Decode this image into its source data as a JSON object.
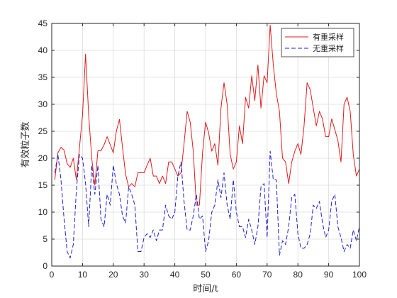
{
  "chart_data": {
    "type": "line",
    "xlabel": "时间/t",
    "ylabel": "有效粒子数",
    "xlim": [
      0,
      100
    ],
    "ylim": [
      0,
      45
    ],
    "xticks": [
      0,
      10,
      20,
      30,
      40,
      50,
      60,
      70,
      80,
      90,
      100
    ],
    "yticks": [
      0,
      5,
      10,
      15,
      20,
      25,
      30,
      35,
      40,
      45
    ],
    "grid": true,
    "legend_position": "top-right",
    "series": [
      {
        "name": "有重采样",
        "color": "#e41a1c",
        "style": "solid",
        "x": [
          1,
          2,
          3,
          4,
          5,
          6,
          7,
          8,
          9,
          10,
          11,
          12,
          13,
          14,
          15,
          16,
          17,
          18,
          19,
          20,
          21,
          22,
          23,
          24,
          25,
          26,
          27,
          28,
          29,
          30,
          31,
          32,
          33,
          34,
          35,
          36,
          37,
          38,
          39,
          40,
          41,
          42,
          43,
          44,
          45,
          46,
          47,
          48,
          49,
          50,
          51,
          52,
          53,
          54,
          55,
          56,
          57,
          58,
          59,
          60,
          61,
          62,
          63,
          64,
          65,
          66,
          67,
          68,
          69,
          70,
          71,
          72,
          73,
          74,
          75,
          76,
          77,
          78,
          79,
          80,
          81,
          82,
          83,
          84,
          85,
          86,
          87,
          88,
          89,
          90,
          91,
          92,
          93,
          94,
          95,
          96,
          97,
          98,
          99,
          100
        ],
        "y": [
          16,
          21,
          22,
          21.5,
          19,
          18.3,
          20,
          16,
          22,
          28,
          39.3,
          28,
          20,
          15,
          21.4,
          21.4,
          22.5,
          24,
          22.5,
          21,
          25,
          27.2,
          22,
          17,
          14.7,
          15.3,
          14.7,
          17.3,
          17.3,
          17.3,
          18.7,
          20,
          16.7,
          16.7,
          15.3,
          16.7,
          15.3,
          19.3,
          19.3,
          18,
          16.7,
          17.3,
          22.7,
          28.7,
          26.7,
          21.3,
          11.3,
          11.3,
          21,
          26.7,
          24.7,
          21.3,
          22.7,
          18.7,
          29.3,
          34,
          30,
          20.7,
          18,
          19.3,
          26,
          22.7,
          31.3,
          29.3,
          35.3,
          30.7,
          37.3,
          29.3,
          35.3,
          34,
          44.7,
          37.3,
          32,
          28.7,
          20,
          19.3,
          15.3,
          19.3,
          21.3,
          22.7,
          20.7,
          26,
          34,
          32.7,
          29.3,
          26,
          28.7,
          27.3,
          24,
          24,
          27.3,
          25.3,
          23.3,
          19.3,
          30,
          31.3,
          28.7,
          20.7,
          16.7,
          18
        ]
      },
      {
        "name": "无重采样",
        "color": "#1f1fd6",
        "style": "dashed",
        "x": [
          1,
          2,
          3,
          4,
          5,
          6,
          7,
          8,
          9,
          10,
          11,
          12,
          13,
          14,
          15,
          16,
          17,
          18,
          19,
          20,
          21,
          22,
          23,
          24,
          25,
          26,
          27,
          28,
          29,
          30,
          31,
          32,
          33,
          34,
          35,
          36,
          37,
          38,
          39,
          40,
          41,
          42,
          43,
          44,
          45,
          46,
          47,
          48,
          49,
          50,
          51,
          52,
          53,
          54,
          55,
          56,
          57,
          58,
          59,
          60,
          61,
          62,
          63,
          64,
          65,
          66,
          67,
          68,
          69,
          70,
          71,
          72,
          73,
          74,
          75,
          76,
          77,
          78,
          79,
          80,
          81,
          82,
          83,
          84,
          85,
          86,
          87,
          88,
          89,
          90,
          91,
          92,
          93,
          94,
          95,
          96,
          97,
          98,
          99,
          100
        ],
        "y": [
          17.3,
          20.7,
          16,
          8.7,
          2.7,
          1.5,
          4,
          14,
          20.7,
          20,
          15.3,
          7.3,
          18.7,
          13.3,
          18.7,
          8.7,
          7.3,
          13.3,
          11.3,
          18.7,
          15.3,
          13.3,
          9.3,
          8,
          14.7,
          13.3,
          11.3,
          2.7,
          2.7,
          5.3,
          6,
          5.3,
          6.7,
          4.7,
          6.7,
          6.7,
          11.3,
          9.3,
          8.7,
          10,
          16.7,
          19.3,
          12,
          6.7,
          6.7,
          9.3,
          13.3,
          8.7,
          9.3,
          2.7,
          4.7,
          10,
          11.3,
          16,
          12.7,
          17.3,
          11.3,
          8.7,
          16,
          10,
          7.3,
          7.3,
          5.3,
          8.7,
          6.7,
          4,
          7.3,
          14.7,
          15.3,
          5.3,
          21.3,
          16,
          16,
          2,
          4.7,
          4,
          7.3,
          12.7,
          13.3,
          6,
          3.3,
          3.3,
          4,
          6,
          11.3,
          10.7,
          12,
          8,
          5.3,
          6.7,
          12,
          13.3,
          7.3,
          5.3,
          2.7,
          4,
          3.3,
          6.7,
          4.7,
          7.3
        ]
      }
    ]
  }
}
